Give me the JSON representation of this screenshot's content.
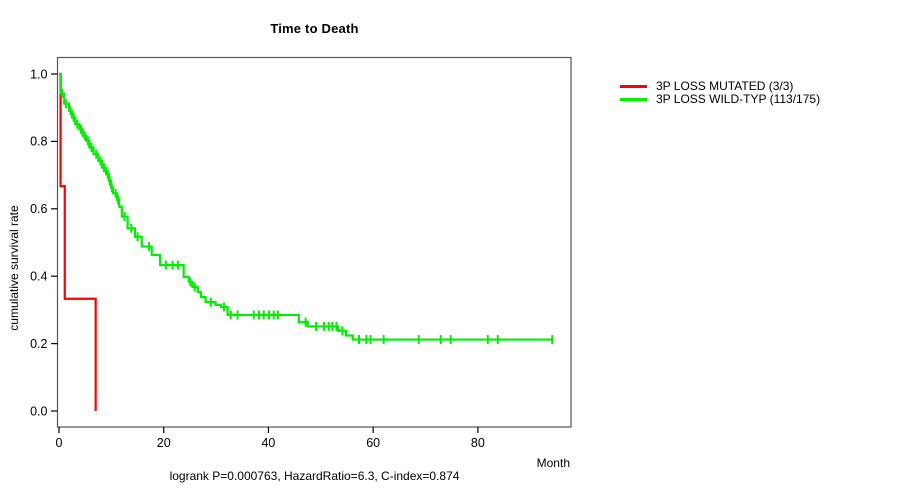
{
  "title": "Time to Death",
  "y_axis": {
    "label": "cumulative survival rate",
    "ticks": [
      "1.0",
      "0.8",
      "0.6",
      "0.4",
      "0.2",
      "0.0"
    ]
  },
  "x_axis": {
    "label": "Month",
    "ticks": [
      "0",
      "20",
      "40",
      "60",
      "80"
    ]
  },
  "footer": "logrank P=0.000763, HazardRatio=6.3, C-index=0.874",
  "legend": {
    "items": [
      {
        "label": "3P LOSS MUTATED (3/3)",
        "color": "#ff0000"
      },
      {
        "label": "3P LOSS WILD-TYP (113/175)",
        "color": "#00ee00"
      }
    ]
  },
  "chart_data": {
    "type": "line",
    "subtype": "kaplan-meier-step",
    "title": "Time to Death",
    "xlabel": "Month",
    "ylabel": "cumulative survival rate",
    "xlim": [
      0,
      97.5
    ],
    "ylim": [
      0,
      1.0
    ],
    "grid": false,
    "legend_position": "right-outside",
    "stats": {
      "logrank_p": "0.000763",
      "hazard_ratio": "6.3",
      "c_index": "0.874"
    },
    "frame_color": "#555555",
    "series": [
      {
        "name": "3P LOSS MUTATED (3/3)",
        "color": "#ff0000",
        "events": "3/3",
        "end_month": 7.0,
        "steps": [
          [
            0,
            1.0
          ],
          [
            0.3,
            0.667
          ],
          [
            1.1,
            0.333
          ],
          [
            7.0,
            0.0
          ]
        ],
        "censor_marks": []
      },
      {
        "name": "3P LOSS WILD-TYP (113/175)",
        "color": "#00ee00",
        "events": "113/175",
        "end_month": 94.2,
        "steps": [
          [
            0,
            1.0
          ],
          [
            0.35,
            0.942
          ],
          [
            1.0,
            0.912
          ],
          [
            1.9,
            0.891
          ],
          [
            2.5,
            0.871
          ],
          [
            3.1,
            0.851
          ],
          [
            3.9,
            0.836
          ],
          [
            4.5,
            0.817
          ],
          [
            5.2,
            0.802
          ],
          [
            5.8,
            0.782
          ],
          [
            6.6,
            0.762
          ],
          [
            7.5,
            0.742
          ],
          [
            8.2,
            0.722
          ],
          [
            9.0,
            0.703
          ],
          [
            9.5,
            0.683
          ],
          [
            9.9,
            0.663
          ],
          [
            10.3,
            0.646
          ],
          [
            11.1,
            0.626
          ],
          [
            11.5,
            0.606
          ],
          [
            12.0,
            0.577
          ],
          [
            13.1,
            0.542
          ],
          [
            14.5,
            0.517
          ],
          [
            15.8,
            0.488
          ],
          [
            17.7,
            0.463
          ],
          [
            19.3,
            0.433
          ],
          [
            23.8,
            0.398
          ],
          [
            24.8,
            0.383
          ],
          [
            25.5,
            0.368
          ],
          [
            26.5,
            0.353
          ],
          [
            27.1,
            0.338
          ],
          [
            28.0,
            0.323
          ],
          [
            29.9,
            0.315
          ],
          [
            30.9,
            0.309
          ],
          [
            32.2,
            0.285
          ],
          [
            45.8,
            0.264
          ],
          [
            47.5,
            0.251
          ],
          [
            53.3,
            0.238
          ],
          [
            54.8,
            0.224
          ],
          [
            56.1,
            0.212
          ]
        ],
        "censor_marks": [
          [
            0.6,
            0.942
          ],
          [
            1.3,
            0.912
          ],
          [
            2.2,
            0.891
          ],
          [
            2.8,
            0.871
          ],
          [
            3.5,
            0.851
          ],
          [
            4.2,
            0.836
          ],
          [
            4.9,
            0.817
          ],
          [
            5.5,
            0.802
          ],
          [
            6.2,
            0.782
          ],
          [
            7.1,
            0.762
          ],
          [
            7.9,
            0.742
          ],
          [
            8.6,
            0.722
          ],
          [
            9.3,
            0.703
          ],
          [
            9.7,
            0.683
          ],
          [
            10.1,
            0.663
          ],
          [
            10.8,
            0.646
          ],
          [
            11.3,
            0.626
          ],
          [
            12.5,
            0.577
          ],
          [
            13.8,
            0.542
          ],
          [
            15.0,
            0.517
          ],
          [
            17.2,
            0.488
          ],
          [
            20.4,
            0.433
          ],
          [
            21.7,
            0.433
          ],
          [
            22.7,
            0.433
          ],
          [
            25.1,
            0.383
          ],
          [
            25.9,
            0.368
          ],
          [
            29.0,
            0.323
          ],
          [
            31.5,
            0.309
          ],
          [
            32.8,
            0.285
          ],
          [
            34.1,
            0.285
          ],
          [
            37.2,
            0.285
          ],
          [
            38.2,
            0.285
          ],
          [
            39.1,
            0.285
          ],
          [
            40.1,
            0.285
          ],
          [
            41.0,
            0.285
          ],
          [
            41.8,
            0.285
          ],
          [
            47.1,
            0.264
          ],
          [
            49.1,
            0.251
          ],
          [
            50.6,
            0.251
          ],
          [
            51.5,
            0.251
          ],
          [
            52.2,
            0.251
          ],
          [
            53.0,
            0.251
          ],
          [
            54.1,
            0.238
          ],
          [
            57.3,
            0.212
          ],
          [
            58.7,
            0.212
          ],
          [
            59.5,
            0.212
          ],
          [
            62.0,
            0.212
          ],
          [
            68.7,
            0.212
          ],
          [
            72.9,
            0.212
          ],
          [
            74.8,
            0.212
          ],
          [
            81.9,
            0.212
          ],
          [
            83.8,
            0.212
          ],
          [
            94.2,
            0.212
          ]
        ]
      }
    ]
  }
}
